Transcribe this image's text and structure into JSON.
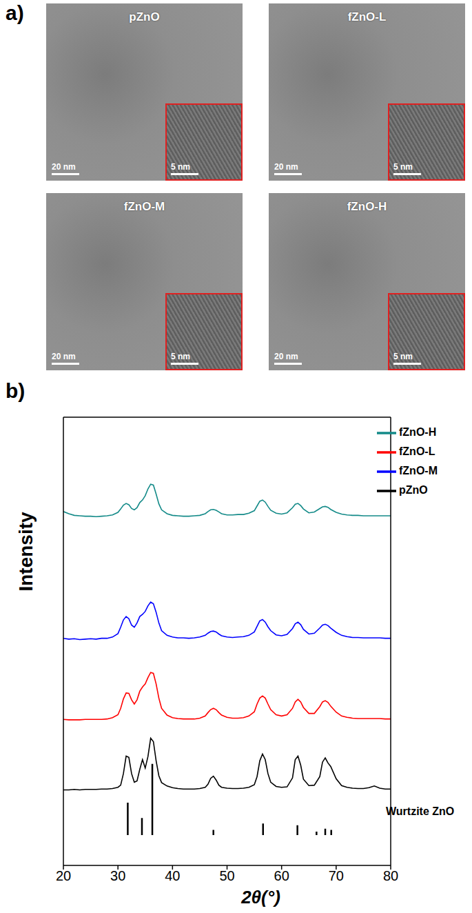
{
  "panel_a": {
    "label": "a)",
    "images": [
      {
        "title": "pZnO",
        "scale_bar": "20 nm",
        "inset_scale_bar": "5 nm"
      },
      {
        "title": "fZnO-L",
        "scale_bar": "20 nm",
        "inset_scale_bar": "5 nm"
      },
      {
        "title": "fZnO-M",
        "scale_bar": "20 nm",
        "inset_scale_bar": "5 nm"
      },
      {
        "title": "fZnO-H",
        "scale_bar": "20 nm",
        "inset_scale_bar": "5 nm"
      }
    ]
  },
  "chart_data": {
    "label": "b)",
    "type": "line",
    "x_label": "2θ(°)",
    "y_label": "Intensity",
    "xlim": [
      20,
      80
    ],
    "xticks": [
      20,
      30,
      40,
      50,
      60,
      70,
      80
    ],
    "ylim": [
      0,
      105
    ],
    "tick_labels": "x",
    "grid": false,
    "legend": "top-right",
    "x": [
      20,
      21,
      22,
      23,
      24,
      25,
      26,
      27,
      28,
      29,
      30,
      30.5,
      31,
      31.5,
      32,
      32.5,
      33,
      33.5,
      34,
      34.5,
      35,
      35.5,
      36,
      36.5,
      37,
      37.5,
      38,
      39,
      40,
      41,
      42,
      43,
      44,
      45,
      46,
      46.5,
      47,
      47.5,
      48,
      48.5,
      49,
      50,
      51,
      52,
      53,
      54,
      55,
      55.5,
      56,
      56.5,
      57,
      57.5,
      58,
      59,
      60,
      61,
      62,
      62.5,
      63,
      63.5,
      64,
      65,
      66,
      67,
      67.5,
      68,
      68.5,
      69,
      70,
      71,
      72,
      73,
      74,
      75,
      76,
      77,
      78,
      79,
      80
    ],
    "series": [
      {
        "name": "pZnO",
        "color": "#000000",
        "values": [
          17.7,
          17.7,
          17.8,
          17.7,
          17.8,
          17.8,
          17.8,
          17.9,
          17.9,
          18.0,
          18.3,
          18.8,
          21.5,
          25.6,
          25.3,
          21.5,
          19.5,
          19.8,
          22.5,
          24.8,
          22.8,
          25.5,
          29.8,
          29.0,
          24.5,
          21.0,
          19.4,
          18.6,
          18.2,
          18.0,
          17.9,
          17.9,
          17.9,
          18.0,
          18.3,
          19.0,
          20.4,
          20.9,
          20.0,
          18.8,
          18.3,
          18.1,
          18.0,
          18.0,
          18.1,
          18.3,
          18.9,
          20.8,
          24.5,
          26.1,
          24.8,
          21.5,
          19.5,
          18.5,
          18.3,
          18.4,
          20.5,
          24.8,
          25.6,
          23.5,
          20.2,
          18.7,
          18.8,
          20.8,
          24.2,
          25.2,
          24.0,
          23.2,
          20.3,
          18.7,
          18.3,
          18.1,
          18.0,
          18.0,
          18.2,
          18.6,
          18.1,
          17.9,
          17.9
        ]
      },
      {
        "name": "fZnO-L",
        "color": "#ff0000",
        "values": [
          34.2,
          34.1,
          34.1,
          34.1,
          34.2,
          34.2,
          34.2,
          34.2,
          34.3,
          34.6,
          35.3,
          36.8,
          39.0,
          40.4,
          40.3,
          38.8,
          37.8,
          38.8,
          40.8,
          41.8,
          42.5,
          44.0,
          45.2,
          45.0,
          42.5,
          39.2,
          36.8,
          35.2,
          34.6,
          34.4,
          34.3,
          34.3,
          34.3,
          34.5,
          35.0,
          35.8,
          36.5,
          36.8,
          36.5,
          35.8,
          35.2,
          34.7,
          34.5,
          34.5,
          34.6,
          35.0,
          36.0,
          37.8,
          39.2,
          39.7,
          39.2,
          37.8,
          36.5,
          35.3,
          35.0,
          35.3,
          36.8,
          38.3,
          38.9,
          38.3,
          37.0,
          35.6,
          35.6,
          37.2,
          38.3,
          38.6,
          38.2,
          37.3,
          35.9,
          35.0,
          34.7,
          34.5,
          34.4,
          34.4,
          34.4,
          34.4,
          34.4,
          34.3,
          34.3
        ]
      },
      {
        "name": "fZnO-M",
        "color": "#0000ff",
        "values": [
          53.2,
          53.0,
          53.1,
          52.9,
          53.0,
          53.1,
          53.0,
          53.2,
          53.2,
          53.5,
          54.3,
          55.8,
          57.5,
          58.3,
          57.8,
          56.3,
          55.8,
          56.8,
          58.3,
          58.8,
          59.5,
          60.8,
          61.7,
          61.3,
          59.3,
          56.8,
          55.0,
          53.9,
          53.5,
          53.3,
          53.3,
          53.2,
          53.3,
          53.5,
          53.9,
          54.4,
          54.8,
          54.9,
          54.7,
          54.2,
          53.8,
          53.5,
          53.4,
          53.5,
          53.6,
          53.9,
          54.7,
          56.0,
          57.3,
          57.6,
          57.0,
          55.9,
          55.0,
          54.0,
          53.8,
          54.1,
          55.5,
          56.6,
          57.0,
          56.4,
          55.3,
          54.2,
          54.4,
          55.6,
          56.3,
          56.5,
          56.2,
          55.6,
          54.6,
          53.9,
          53.6,
          53.4,
          53.4,
          53.3,
          53.3,
          53.3,
          53.3,
          53.2,
          53.2
        ]
      },
      {
        "name": "fZnO-H",
        "color": "#138a88",
        "values": [
          82.9,
          82.4,
          82.0,
          81.9,
          81.8,
          81.8,
          81.7,
          81.8,
          81.9,
          82.1,
          82.7,
          83.5,
          84.4,
          84.8,
          84.5,
          83.6,
          83.3,
          83.8,
          85.0,
          85.6,
          86.6,
          88.2,
          89.3,
          89.1,
          87.0,
          84.7,
          83.3,
          82.4,
          82.0,
          81.9,
          81.8,
          81.8,
          81.9,
          82.0,
          82.4,
          82.9,
          83.3,
          83.4,
          83.2,
          82.8,
          82.4,
          82.1,
          82.1,
          82.2,
          82.2,
          82.5,
          83.1,
          84.2,
          85.3,
          85.6,
          85.1,
          84.1,
          83.2,
          82.5,
          82.3,
          82.6,
          83.8,
          84.6,
          84.8,
          84.3,
          83.5,
          82.6,
          82.8,
          83.6,
          84.0,
          84.1,
          83.9,
          83.4,
          82.7,
          82.3,
          82.1,
          82.0,
          82.0,
          81.9,
          81.9,
          81.9,
          81.9,
          81.9,
          81.9
        ]
      }
    ],
    "reference": {
      "label": "Wurtzite ZnO",
      "color": "#000000",
      "baseline": 7.1,
      "x": [
        31.8,
        34.4,
        36.3,
        47.5,
        56.6,
        62.9,
        66.4,
        68.0,
        69.1
      ],
      "values": [
        14.7,
        11.1,
        23.8,
        8.3,
        9.8,
        9.4,
        7.9,
        8.6,
        8.3
      ]
    }
  }
}
